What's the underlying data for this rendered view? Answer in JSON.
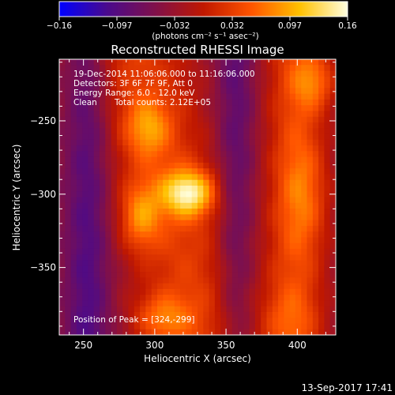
{
  "colorbar": {
    "ticks": [
      "-0.16",
      "-0.097",
      "-0.032",
      "0.032",
      "0.097",
      "0.16"
    ],
    "units_label": "(photons cm⁻² s⁻¹ asec⁻²)"
  },
  "title": "Reconstructed RHESSI Image",
  "info": {
    "time_range": "19-Dec-2014 11:06:06.000 to 11:16:06.000",
    "detectors": "Detectors: 3F 6F 7F 9F, Att 0",
    "energy_range": "Energy Range: 6.0 - 12.0 keV",
    "clean_label": "Clean",
    "total_counts": "Total counts: 2.12E+05",
    "peak_position": "Position of Peak = [324,-299]"
  },
  "footer": {
    "timestamp": "13-Sep-2017 17:41"
  },
  "chart_data": {
    "type": "heatmap",
    "title": "Reconstructed RHESSI Image",
    "xlabel": "Heliocentric X (arcsec)",
    "ylabel": "Heliocentric Y (arcsec)",
    "xlim": [
      233,
      427
    ],
    "ylim": [
      -396,
      -208
    ],
    "x_ticks": [
      250,
      300,
      350,
      400
    ],
    "y_ticks": [
      -250,
      -300,
      -350
    ],
    "x_tick_labels": [
      "250",
      "300",
      "350",
      "400"
    ],
    "y_tick_labels": [
      "−250",
      "−300",
      "−350"
    ],
    "value_range": [
      -0.16,
      0.16
    ],
    "colormap": [
      "#0000ff",
      "#4a0a8c",
      "#80104a",
      "#c01800",
      "#ff5500",
      "#ffc000",
      "#ffffe0"
    ],
    "background_level": -0.04,
    "sources": [
      {
        "x": 324,
        "y": -299,
        "peak": 0.16,
        "sx": 13,
        "sy": 11
      },
      {
        "x": 295,
        "y": -255,
        "peak": 0.09,
        "sx": 11,
        "sy": 14
      },
      {
        "x": 290,
        "y": -315,
        "peak": 0.1,
        "sx": 10,
        "sy": 16
      },
      {
        "x": 305,
        "y": -385,
        "peak": 0.09,
        "sx": 14,
        "sy": 12
      },
      {
        "x": 412,
        "y": -223,
        "peak": 0.09,
        "sx": 11,
        "sy": 14
      },
      {
        "x": 405,
        "y": -300,
        "peak": 0.07,
        "sx": 12,
        "sy": 30
      },
      {
        "x": 395,
        "y": -385,
        "peak": 0.05,
        "sx": 14,
        "sy": 16
      }
    ],
    "ridges": [
      {
        "x0": 310,
        "slope": -0.25,
        "y_center": -300,
        "width": 40,
        "level": 0.03
      },
      {
        "x0": 398,
        "slope": 0.0,
        "y_center": -300,
        "width": 22,
        "level": 0.03
      }
    ],
    "troughs": [
      {
        "x": 253,
        "width": 16,
        "level": -0.1
      },
      {
        "x": 357,
        "width": 14,
        "level": -0.09
      }
    ],
    "peak_position": [
      324,
      -299
    ]
  }
}
